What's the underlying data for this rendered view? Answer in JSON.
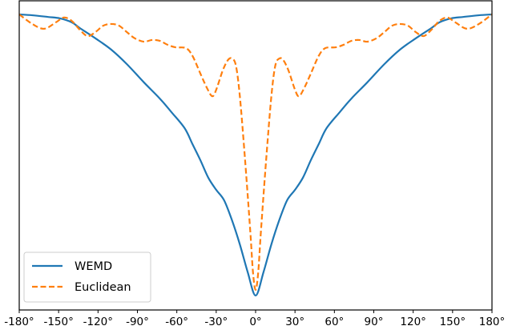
{
  "chart_data": {
    "type": "line",
    "title": "",
    "xlabel": "",
    "ylabel": "",
    "xlim": [
      -180,
      180
    ],
    "ylim_normalized": [
      0,
      1
    ],
    "grid": false,
    "legend_position": "lower left",
    "x_ticks": [
      -180,
      -150,
      -120,
      -90,
      -60,
      -30,
      0,
      30,
      60,
      90,
      120,
      150,
      180
    ],
    "x_tick_labels": [
      "-180°",
      "-150°",
      "-120°",
      "-90°",
      "-60°",
      "-30°",
      "0°",
      "30°",
      "60°",
      "90°",
      "120°",
      "150°",
      "180°"
    ],
    "y_tick_labels": [],
    "series": [
      {
        "name": "WEMD",
        "color": "#1f77b4",
        "style": "solid",
        "x": [
          -180,
          -170,
          -158,
          -149,
          -140,
          -134,
          -122,
          -110,
          -98,
          -85,
          -73,
          -64,
          -54,
          -48,
          -42,
          -36,
          -30,
          -24,
          -18,
          -12,
          -6,
          0,
          6,
          12,
          18,
          24,
          30,
          36,
          42,
          48,
          54,
          64,
          73,
          85,
          98,
          110,
          122,
          134,
          140,
          149,
          158,
          170,
          180
        ],
        "y": [
          1.0,
          0.997,
          0.991,
          0.986,
          0.972,
          0.952,
          0.915,
          0.875,
          0.823,
          0.758,
          0.701,
          0.652,
          0.595,
          0.538,
          0.481,
          0.419,
          0.376,
          0.339,
          0.268,
          0.182,
          0.083,
          0.0,
          0.083,
          0.182,
          0.268,
          0.339,
          0.376,
          0.419,
          0.481,
          0.538,
          0.595,
          0.652,
          0.701,
          0.758,
          0.823,
          0.875,
          0.915,
          0.952,
          0.972,
          0.986,
          0.991,
          0.997,
          1.0
        ]
      },
      {
        "name": "Euclidean",
        "color": "#ff7f0e",
        "style": "dashed",
        "x": [
          -180,
          -170,
          -161,
          -152,
          -146,
          -140,
          -134,
          -128,
          -122,
          -116,
          -110,
          -104,
          -98,
          -92,
          -85,
          -79,
          -73,
          -67,
          -61,
          -53,
          -48,
          -42,
          -37,
          -33,
          -30,
          -25,
          -21,
          -18,
          -15,
          -12,
          -8,
          -4,
          -2,
          0,
          2,
          4,
          8,
          12,
          15,
          18,
          21,
          25,
          30,
          33,
          37,
          42,
          48,
          53,
          61,
          67,
          73,
          79,
          85,
          92,
          98,
          104,
          110,
          116,
          122,
          128,
          134,
          140,
          146,
          152,
          161,
          170,
          180
        ],
        "y": [
          1.0,
          0.966,
          0.949,
          0.972,
          0.989,
          0.977,
          0.946,
          0.923,
          0.937,
          0.96,
          0.966,
          0.96,
          0.937,
          0.915,
          0.903,
          0.909,
          0.906,
          0.892,
          0.883,
          0.88,
          0.852,
          0.789,
          0.738,
          0.709,
          0.732,
          0.801,
          0.838,
          0.843,
          0.818,
          0.709,
          0.481,
          0.225,
          0.083,
          0.02,
          0.083,
          0.225,
          0.481,
          0.709,
          0.818,
          0.843,
          0.838,
          0.801,
          0.732,
          0.709,
          0.738,
          0.789,
          0.852,
          0.88,
          0.883,
          0.892,
          0.906,
          0.909,
          0.903,
          0.915,
          0.937,
          0.96,
          0.966,
          0.96,
          0.937,
          0.923,
          0.946,
          0.977,
          0.989,
          0.972,
          0.949,
          0.966,
          1.0
        ]
      }
    ]
  },
  "legend": {
    "items": [
      {
        "label": "WEMD",
        "color": "#1f77b4",
        "style": "solid"
      },
      {
        "label": "Euclidean",
        "color": "#ff7f0e",
        "style": "dashed"
      }
    ]
  },
  "colors": {
    "axes": "#000000",
    "background": "#ffffff",
    "legend_border": "#cccccc"
  }
}
